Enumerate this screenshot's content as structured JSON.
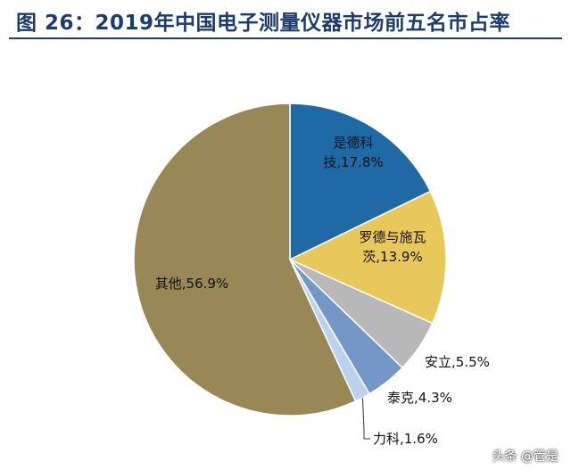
{
  "title": "图 26：2019年中国电子测量仪器市场前五名市占率",
  "watermark": "头条 @管是",
  "chart_data": {
    "type": "pie",
    "title": "图 26：2019年中国电子测量仪器市场前五名市占率",
    "start": "12 o'clock, clockwise",
    "slices": [
      {
        "label_lines": [
          "是德科",
          "技,17.8%"
        ],
        "name": "是德科技",
        "value": 17.8,
        "color": "#1f6aa5"
      },
      {
        "label_lines": [
          "罗德与施瓦",
          "茨,13.9%"
        ],
        "name": "罗德与施瓦茨",
        "value": 13.9,
        "color": "#e8c85a"
      },
      {
        "label_lines": [
          "安立,5.5%"
        ],
        "name": "安立",
        "value": 5.5,
        "color": "#b8b8b8"
      },
      {
        "label_lines": [
          "泰克,4.3%"
        ],
        "name": "泰克",
        "value": 4.3,
        "color": "#7597c8"
      },
      {
        "label_lines": [
          "力科,1.6%"
        ],
        "name": "力科",
        "value": 1.6,
        "color": "#bcd2ec"
      },
      {
        "label_lines": [
          "其他,56.9%"
        ],
        "name": "其他",
        "value": 56.9,
        "color": "#978856"
      }
    ]
  }
}
